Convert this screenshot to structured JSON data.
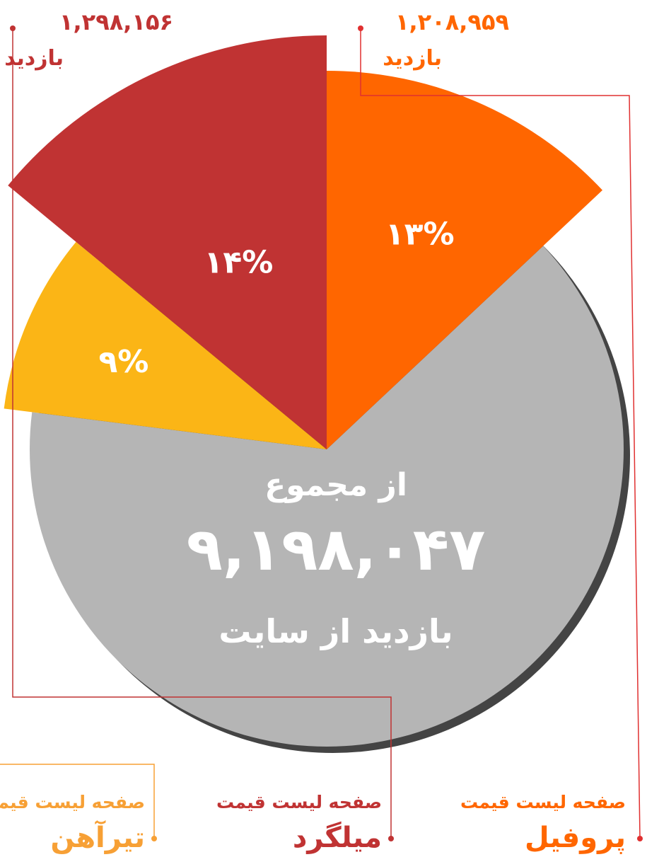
{
  "chart_data": {
    "type": "pie",
    "categories": [
      "پروفیل",
      "میلگرد",
      "تیرآهن",
      null
    ],
    "values": [
      13,
      14,
      9,
      64
    ],
    "value_labels": [
      "۱۳%",
      "۱۴%",
      "۹%",
      null
    ],
    "colors": [
      "#ff6600",
      "#c03333",
      "#fbb516",
      "#b5b5b5"
    ],
    "category_prefix": [
      "صفحه لیست قیمت",
      "صفحه لیست قیمت",
      "صفحه لیست قیمت",
      null
    ],
    "visit_labels": [
      "۱,۲۰۸,۹۵۹",
      "۱,۲۹۸,۱۵۶",
      null,
      null
    ],
    "visit_unit": [
      "بازدید",
      "بازدید",
      null,
      null
    ],
    "center_text": [
      "از مجموع",
      "۹,۱۹۸,۰۴۷",
      "بازدید از سایت"
    ]
  }
}
